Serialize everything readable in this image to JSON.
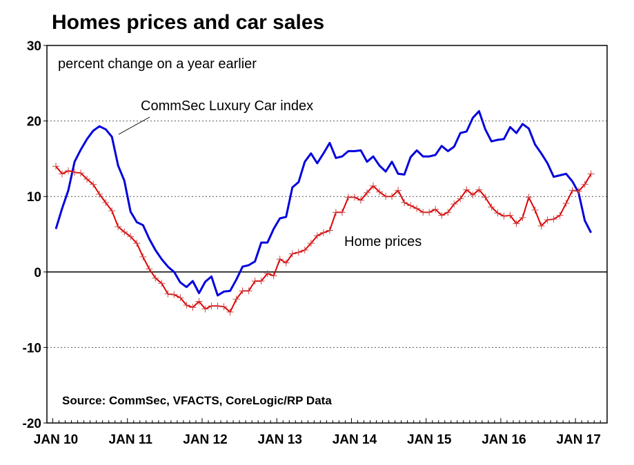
{
  "chart_data": {
    "type": "line",
    "title": "Homes prices and car sales",
    "subtitle": "percent change on a year earlier",
    "source": "Source: CommSec, VFACTS, CoreLogic/RP Data",
    "ylim": [
      -20,
      30
    ],
    "yticks": [
      30,
      20,
      10,
      0,
      -10,
      -20
    ],
    "xtick_labels": [
      "JAN 10",
      "JAN 11",
      "JAN 12",
      "JAN 13",
      "JAN 14",
      "JAN 15",
      "JAN 16",
      "JAN 17"
    ],
    "x_frequency": "monthly, starting Jan 2010",
    "grid": "dotted horizontal at 20, 10, -10; solid zero line",
    "series": [
      {
        "name": "CommSec Luxury Car index",
        "color": "#0000dd",
        "marker": "none",
        "values": [
          5.7,
          8.4,
          10.8,
          14.6,
          16.2,
          17.6,
          18.7,
          19.3,
          18.9,
          17.9,
          14.1,
          12.1,
          8.0,
          6.6,
          6.2,
          4.4,
          2.9,
          1.7,
          0.7,
          0.0,
          -1.4,
          -2.0,
          -1.2,
          -2.8,
          -1.3,
          -0.6,
          -3.1,
          -2.6,
          -2.5,
          -1.0,
          0.7,
          0.9,
          1.4,
          3.9,
          3.9,
          5.7,
          7.1,
          7.3,
          11.2,
          11.9,
          14.6,
          15.7,
          14.4,
          15.7,
          17.1,
          15.1,
          15.3,
          16.0,
          16.0,
          16.1,
          14.6,
          15.3,
          14.1,
          13.3,
          14.6,
          13.0,
          12.9,
          15.2,
          16.1,
          15.3,
          15.3,
          15.5,
          16.7,
          16.0,
          16.6,
          18.4,
          18.6,
          20.4,
          21.3,
          18.9,
          17.3,
          17.5,
          17.6,
          19.2,
          18.4,
          19.6,
          19.0,
          16.9,
          15.7,
          14.4,
          12.6,
          12.8,
          13.0,
          12.0,
          10.5,
          6.8,
          5.2
        ]
      },
      {
        "name": "Home prices",
        "color": "#dd0000",
        "marker": "+",
        "values": [
          14.0,
          13.0,
          13.4,
          13.2,
          13.1,
          12.3,
          11.6,
          10.3,
          9.2,
          8.1,
          6.0,
          5.3,
          4.7,
          3.8,
          2.0,
          0.4,
          -0.8,
          -1.5,
          -2.9,
          -3.0,
          -3.4,
          -4.4,
          -4.7,
          -3.9,
          -4.9,
          -4.5,
          -4.5,
          -4.6,
          -5.3,
          -3.6,
          -2.5,
          -2.5,
          -1.2,
          -1.2,
          -0.2,
          -0.5,
          1.7,
          1.2,
          2.4,
          2.6,
          2.9,
          3.8,
          4.8,
          5.2,
          5.5,
          7.9,
          7.9,
          9.9,
          9.9,
          9.5,
          10.5,
          11.4,
          10.6,
          10.0,
          10.0,
          10.8,
          9.2,
          8.8,
          8.4,
          7.9,
          7.9,
          8.3,
          7.5,
          7.9,
          9.0,
          9.7,
          10.9,
          10.2,
          10.9,
          9.9,
          8.6,
          7.8,
          7.4,
          7.5,
          6.4,
          7.2,
          9.9,
          8.2,
          6.1,
          6.9,
          7.0,
          7.5,
          9.1,
          10.8,
          10.7,
          11.6,
          13.0
        ]
      }
    ],
    "annotations": [
      "CommSec Luxury Car index",
      "Home prices"
    ]
  }
}
